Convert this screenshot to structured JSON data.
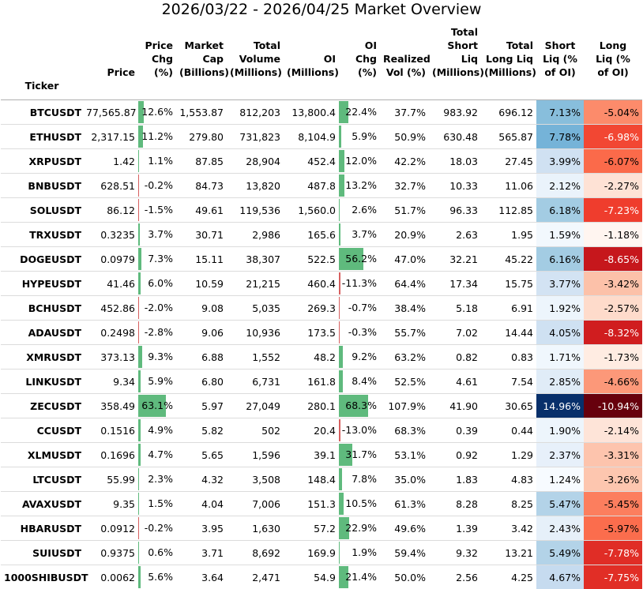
{
  "title": "2026/03/22 - 2026/04/25 Market Overview",
  "colors": {
    "bar_pos": "#5fba7d",
    "bar_neg": "#d65f5f"
  },
  "headers": {
    "index_label": "Ticker",
    "columns": [
      [
        "Price"
      ],
      [
        "Price",
        "Chg",
        "(%)"
      ],
      [
        "Market",
        "Cap",
        "(Billions)"
      ],
      [
        "Total",
        "Volume",
        "(Millions)"
      ],
      [
        "OI",
        "(Millions)"
      ],
      [
        "OI",
        "Chg",
        "(%)"
      ],
      [
        "Realized",
        "Vol (%)"
      ],
      [
        "Total",
        "Short Liq",
        "(Millions)"
      ],
      [
        "Total",
        "Long Liq",
        "(Millions)"
      ],
      [
        "Short",
        "Liq (%",
        "of OI)"
      ],
      [
        "Long",
        "Liq (%",
        "of OI)"
      ]
    ]
  },
  "chart_data": {
    "type": "table",
    "title": "2026/03/22 - 2026/04/25 Market Overview",
    "index_name": "Ticker",
    "rows": [
      {
        "ticker": "BTCUSDT",
        "price": "77,565.87",
        "price_chg": "12.6%",
        "price_chg_val": 12.6,
        "mcap": "1,553.87",
        "volume": "812,203",
        "oi": "13,800.4",
        "oi_chg": "22.4%",
        "oi_chg_val": 22.4,
        "rvol": "37.7%",
        "short_liq": "983.92",
        "long_liq": "696.12",
        "short_pct": "7.13%",
        "short_pct_val": 7.13,
        "long_pct": "-5.04%",
        "long_pct_val": -5.04
      },
      {
        "ticker": "ETHUSDT",
        "price": "2,317.15",
        "price_chg": "11.2%",
        "price_chg_val": 11.2,
        "mcap": "279.80",
        "volume": "731,823",
        "oi": "8,104.9",
        "oi_chg": "5.9%",
        "oi_chg_val": 5.9,
        "rvol": "50.9%",
        "short_liq": "630.48",
        "long_liq": "565.87",
        "short_pct": "7.78%",
        "short_pct_val": 7.78,
        "long_pct": "-6.98%",
        "long_pct_val": -6.98
      },
      {
        "ticker": "XRPUSDT",
        "price": "1.42",
        "price_chg": "1.1%",
        "price_chg_val": 1.1,
        "mcap": "87.85",
        "volume": "28,904",
        "oi": "452.4",
        "oi_chg": "12.0%",
        "oi_chg_val": 12.0,
        "rvol": "42.2%",
        "short_liq": "18.03",
        "long_liq": "27.45",
        "short_pct": "3.99%",
        "short_pct_val": 3.99,
        "long_pct": "-6.07%",
        "long_pct_val": -6.07
      },
      {
        "ticker": "BNBUSDT",
        "price": "628.51",
        "price_chg": "-0.2%",
        "price_chg_val": -0.2,
        "mcap": "84.73",
        "volume": "13,820",
        "oi": "487.8",
        "oi_chg": "13.2%",
        "oi_chg_val": 13.2,
        "rvol": "32.7%",
        "short_liq": "10.33",
        "long_liq": "11.06",
        "short_pct": "2.12%",
        "short_pct_val": 2.12,
        "long_pct": "-2.27%",
        "long_pct_val": -2.27
      },
      {
        "ticker": "SOLUSDT",
        "price": "86.12",
        "price_chg": "-1.5%",
        "price_chg_val": -1.5,
        "mcap": "49.61",
        "volume": "119,536",
        "oi": "1,560.0",
        "oi_chg": "2.6%",
        "oi_chg_val": 2.6,
        "rvol": "51.7%",
        "short_liq": "96.33",
        "long_liq": "112.85",
        "short_pct": "6.18%",
        "short_pct_val": 6.18,
        "long_pct": "-7.23%",
        "long_pct_val": -7.23
      },
      {
        "ticker": "TRXUSDT",
        "price": "0.3235",
        "price_chg": "3.7%",
        "price_chg_val": 3.7,
        "mcap": "30.71",
        "volume": "2,986",
        "oi": "165.6",
        "oi_chg": "3.7%",
        "oi_chg_val": 3.7,
        "rvol": "20.9%",
        "short_liq": "2.63",
        "long_liq": "1.95",
        "short_pct": "1.59%",
        "short_pct_val": 1.59,
        "long_pct": "-1.18%",
        "long_pct_val": -1.18
      },
      {
        "ticker": "DOGEUSDT",
        "price": "0.0979",
        "price_chg": "7.3%",
        "price_chg_val": 7.3,
        "mcap": "15.11",
        "volume": "38,307",
        "oi": "522.5",
        "oi_chg": "56.2%",
        "oi_chg_val": 56.2,
        "rvol": "47.0%",
        "short_liq": "32.21",
        "long_liq": "45.22",
        "short_pct": "6.16%",
        "short_pct_val": 6.16,
        "long_pct": "-8.65%",
        "long_pct_val": -8.65
      },
      {
        "ticker": "HYPEUSDT",
        "price": "41.46",
        "price_chg": "6.0%",
        "price_chg_val": 6.0,
        "mcap": "10.59",
        "volume": "21,215",
        "oi": "460.4",
        "oi_chg": "-11.3%",
        "oi_chg_val": -11.3,
        "rvol": "64.4%",
        "short_liq": "17.34",
        "long_liq": "15.75",
        "short_pct": "3.77%",
        "short_pct_val": 3.77,
        "long_pct": "-3.42%",
        "long_pct_val": -3.42
      },
      {
        "ticker": "BCHUSDT",
        "price": "452.86",
        "price_chg": "-2.0%",
        "price_chg_val": -2.0,
        "mcap": "9.08",
        "volume": "5,035",
        "oi": "269.3",
        "oi_chg": "-0.7%",
        "oi_chg_val": -0.7,
        "rvol": "38.4%",
        "short_liq": "5.18",
        "long_liq": "6.91",
        "short_pct": "1.92%",
        "short_pct_val": 1.92,
        "long_pct": "-2.57%",
        "long_pct_val": -2.57
      },
      {
        "ticker": "ADAUSDT",
        "price": "0.2498",
        "price_chg": "-2.8%",
        "price_chg_val": -2.8,
        "mcap": "9.06",
        "volume": "10,936",
        "oi": "173.5",
        "oi_chg": "-0.3%",
        "oi_chg_val": -0.3,
        "rvol": "55.7%",
        "short_liq": "7.02",
        "long_liq": "14.44",
        "short_pct": "4.05%",
        "short_pct_val": 4.05,
        "long_pct": "-8.32%",
        "long_pct_val": -8.32
      },
      {
        "ticker": "XMRUSDT",
        "price": "373.13",
        "price_chg": "9.3%",
        "price_chg_val": 9.3,
        "mcap": "6.88",
        "volume": "1,552",
        "oi": "48.2",
        "oi_chg": "9.2%",
        "oi_chg_val": 9.2,
        "rvol": "63.2%",
        "short_liq": "0.82",
        "long_liq": "0.83",
        "short_pct": "1.71%",
        "short_pct_val": 1.71,
        "long_pct": "-1.73%",
        "long_pct_val": -1.73
      },
      {
        "ticker": "LINKUSDT",
        "price": "9.34",
        "price_chg": "5.9%",
        "price_chg_val": 5.9,
        "mcap": "6.80",
        "volume": "6,731",
        "oi": "161.8",
        "oi_chg": "8.4%",
        "oi_chg_val": 8.4,
        "rvol": "52.5%",
        "short_liq": "4.61",
        "long_liq": "7.54",
        "short_pct": "2.85%",
        "short_pct_val": 2.85,
        "long_pct": "-4.66%",
        "long_pct_val": -4.66
      },
      {
        "ticker": "ZECUSDT",
        "price": "358.49",
        "price_chg": "63.1%",
        "price_chg_val": 63.1,
        "mcap": "5.97",
        "volume": "27,049",
        "oi": "280.1",
        "oi_chg": "68.3%",
        "oi_chg_val": 68.3,
        "rvol": "107.9%",
        "short_liq": "41.90",
        "long_liq": "30.65",
        "short_pct": "14.96%",
        "short_pct_val": 14.96,
        "long_pct": "-10.94%",
        "long_pct_val": -10.94
      },
      {
        "ticker": "CCUSDT",
        "price": "0.1516",
        "price_chg": "4.9%",
        "price_chg_val": 4.9,
        "mcap": "5.82",
        "volume": "502",
        "oi": "20.4",
        "oi_chg": "-13.0%",
        "oi_chg_val": -13.0,
        "rvol": "68.3%",
        "short_liq": "0.39",
        "long_liq": "0.44",
        "short_pct": "1.90%",
        "short_pct_val": 1.9,
        "long_pct": "-2.14%",
        "long_pct_val": -2.14
      },
      {
        "ticker": "XLMUSDT",
        "price": "0.1696",
        "price_chg": "4.7%",
        "price_chg_val": 4.7,
        "mcap": "5.65",
        "volume": "1,596",
        "oi": "39.1",
        "oi_chg": "31.7%",
        "oi_chg_val": 31.7,
        "rvol": "53.1%",
        "short_liq": "0.92",
        "long_liq": "1.29",
        "short_pct": "2.37%",
        "short_pct_val": 2.37,
        "long_pct": "-3.31%",
        "long_pct_val": -3.31
      },
      {
        "ticker": "LTCUSDT",
        "price": "55.99",
        "price_chg": "2.3%",
        "price_chg_val": 2.3,
        "mcap": "4.32",
        "volume": "3,508",
        "oi": "148.4",
        "oi_chg": "7.8%",
        "oi_chg_val": 7.8,
        "rvol": "35.0%",
        "short_liq": "1.83",
        "long_liq": "4.83",
        "short_pct": "1.24%",
        "short_pct_val": 1.24,
        "long_pct": "-3.26%",
        "long_pct_val": -3.26
      },
      {
        "ticker": "AVAXUSDT",
        "price": "9.35",
        "price_chg": "1.5%",
        "price_chg_val": 1.5,
        "mcap": "4.04",
        "volume": "7,006",
        "oi": "151.3",
        "oi_chg": "10.5%",
        "oi_chg_val": 10.5,
        "rvol": "61.3%",
        "short_liq": "8.28",
        "long_liq": "8.25",
        "short_pct": "5.47%",
        "short_pct_val": 5.47,
        "long_pct": "-5.45%",
        "long_pct_val": -5.45
      },
      {
        "ticker": "HBARUSDT",
        "price": "0.0912",
        "price_chg": "-0.2%",
        "price_chg_val": -0.2,
        "mcap": "3.95",
        "volume": "1,630",
        "oi": "57.2",
        "oi_chg": "22.9%",
        "oi_chg_val": 22.9,
        "rvol": "49.6%",
        "short_liq": "1.39",
        "long_liq": "3.42",
        "short_pct": "2.43%",
        "short_pct_val": 2.43,
        "long_pct": "-5.97%",
        "long_pct_val": -5.97
      },
      {
        "ticker": "SUIUSDT",
        "price": "0.9375",
        "price_chg": "0.6%",
        "price_chg_val": 0.6,
        "mcap": "3.71",
        "volume": "8,692",
        "oi": "169.9",
        "oi_chg": "1.9%",
        "oi_chg_val": 1.9,
        "rvol": "59.4%",
        "short_liq": "9.32",
        "long_liq": "13.21",
        "short_pct": "5.49%",
        "short_pct_val": 5.49,
        "long_pct": "-7.78%",
        "long_pct_val": -7.78
      },
      {
        "ticker": "1000SHIBUSDT",
        "price": "0.0062",
        "price_chg": "5.6%",
        "price_chg_val": 5.6,
        "mcap": "3.64",
        "volume": "2,471",
        "oi": "54.9",
        "oi_chg": "21.4%",
        "oi_chg_val": 21.4,
        "rvol": "50.0%",
        "short_liq": "2.56",
        "long_liq": "4.25",
        "short_pct": "4.67%",
        "short_pct_val": 4.67,
        "long_pct": "-7.75%",
        "long_pct_val": -7.75
      }
    ]
  }
}
